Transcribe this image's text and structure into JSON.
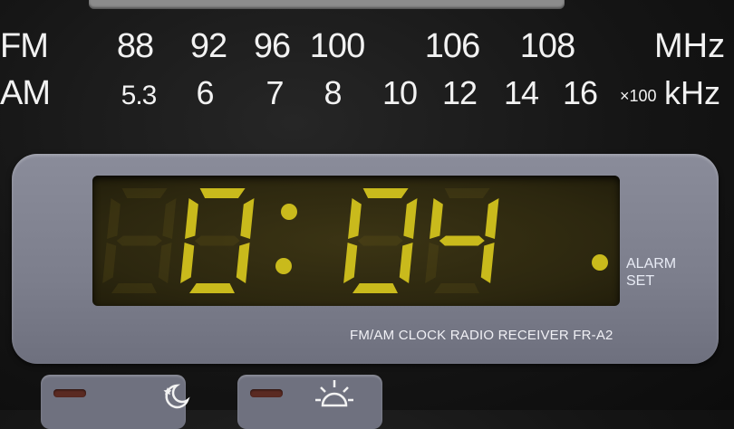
{
  "dial": {
    "fm_label": "FM",
    "am_label": "AM",
    "fm_ticks": [
      "88",
      "92",
      "96",
      "100",
      "106",
      "108"
    ],
    "fm_unit": "MHz",
    "am_ticks": [
      "5.3",
      "6",
      "7",
      "8",
      "10",
      "12",
      "14",
      "16"
    ],
    "am_unit_prefix": "×100",
    "am_unit": "kHz"
  },
  "display": {
    "time": "0:04",
    "segment_color": "#c9ba1c",
    "alarm_label": "ALARM\nSET"
  },
  "model_label": "FM/AM CLOCK RADIO RECEIVER FR-A2",
  "buttons": {
    "sleep_icon": "moon-star-icon",
    "wake_icon": "sunrise-icon"
  }
}
